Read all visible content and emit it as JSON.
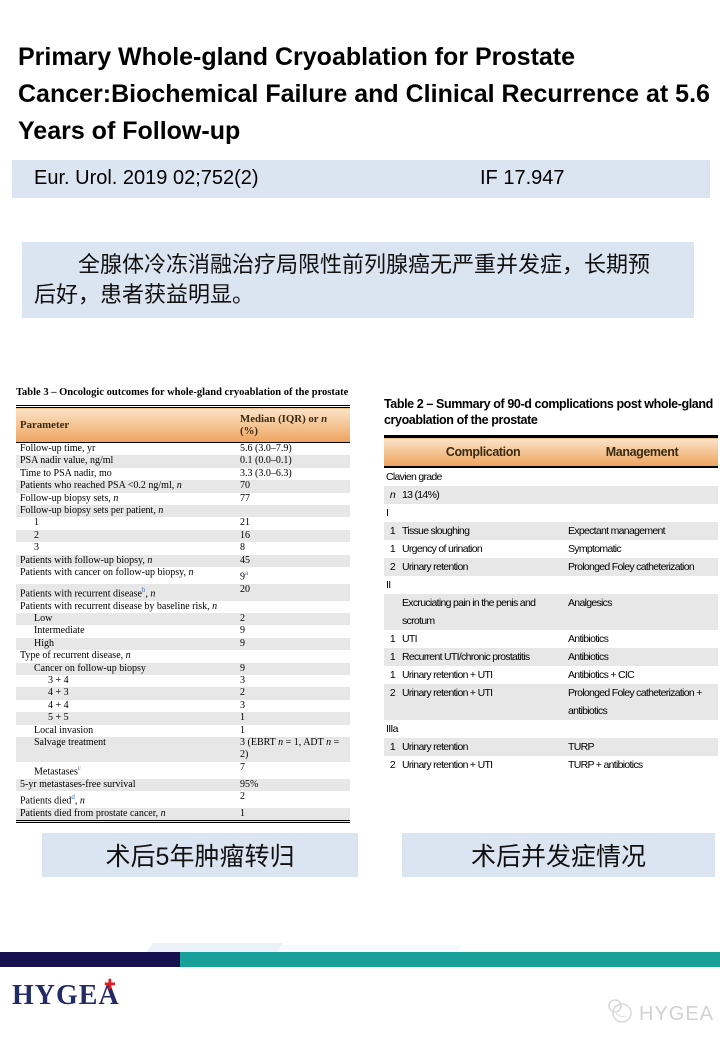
{
  "header": {
    "title": "Primary Whole-gland Cryoablation for Prostate Cancer:Biochemical Failure and Clinical Recurrence at 5.6 Years of Follow-up",
    "citation": "Eur. Urol. 2019 02;752(2)",
    "impact_factor": "IF 17.947"
  },
  "summary": {
    "text": "全腺体冷冻消融治疗局限性前列腺癌无严重并发症，长期预后好，患者获益明显。"
  },
  "table3": {
    "title": "Table 3 – Oncologic outcomes for whole-gland cryoablation of the prostate",
    "columns": [
      "Parameter",
      "Median (IQR) or n (%)"
    ],
    "rows": [
      {
        "label": "Follow-up time, yr",
        "value": "5.6 (3.0–7.9)",
        "indent": 0
      },
      {
        "label": "PSA nadir value, ng/ml",
        "value": "0.1 (0.0–0.1)",
        "indent": 0
      },
      {
        "label": "Time to PSA nadir, mo",
        "value": "3.3 (3.0–6.3)",
        "indent": 0
      },
      {
        "label": "Patients who reached PSA <0.2 ng/ml, n",
        "value": "70",
        "indent": 0
      },
      {
        "label": "Follow-up biopsy sets, n",
        "value": "77",
        "indent": 0
      },
      {
        "label": "Follow-up biopsy sets per patient, n",
        "value": "",
        "indent": 0
      },
      {
        "label": "1",
        "value": "21",
        "indent": 1
      },
      {
        "label": "2",
        "value": "16",
        "indent": 1
      },
      {
        "label": "3",
        "value": "8",
        "indent": 1
      },
      {
        "label": "Patients with follow-up biopsy, n",
        "value": "45",
        "indent": 0
      },
      {
        "label": "Patients with cancer on follow-up biopsy, n",
        "value": "9^a",
        "indent": 0
      },
      {
        "label": "Patients with recurrent disease^b, n",
        "value": "20",
        "indent": 0
      },
      {
        "label": "Patients with recurrent disease by baseline risk, n",
        "value": "",
        "indent": 0
      },
      {
        "label": "Low",
        "value": "2",
        "indent": 1
      },
      {
        "label": "Intermediate",
        "value": "9",
        "indent": 1
      },
      {
        "label": "High",
        "value": "9",
        "indent": 1
      },
      {
        "label": "Type of recurrent disease, n",
        "value": "",
        "indent": 0
      },
      {
        "label": "Cancer on follow-up biopsy",
        "value": "9",
        "indent": 1
      },
      {
        "label": "3 + 4",
        "value": "3",
        "indent": 2
      },
      {
        "label": "4 + 3",
        "value": "2",
        "indent": 2
      },
      {
        "label": "4 + 4",
        "value": "3",
        "indent": 2
      },
      {
        "label": "5 + 5",
        "value": "1",
        "indent": 2
      },
      {
        "label": "Local invasion",
        "value": "1",
        "indent": 1
      },
      {
        "label": "Salvage treatment",
        "value": "3 (EBRT n = 1, ADT n = 2)",
        "indent": 1
      },
      {
        "label": "Metastases^c",
        "value": "7",
        "indent": 1
      },
      {
        "label": "5-yr metastases-free survival",
        "value": "95%",
        "indent": 0
      },
      {
        "label": "Patients died^d, n",
        "value": "2",
        "indent": 0
      },
      {
        "label": "Patients died from prostate cancer, n",
        "value": "1",
        "indent": 0
      }
    ]
  },
  "table2": {
    "title": "Table 2 – Summary of 90-d complications post whole-gland cryoablation of the prostate",
    "columns": [
      "Complication",
      "Management"
    ],
    "rows": [
      {
        "group": "Clavien grade"
      },
      {
        "count": "n",
        "complication": "13 (14%)",
        "management": ""
      },
      {
        "group": "I"
      },
      {
        "count": "1",
        "complication": "Tissue sloughing",
        "management": "Expectant management"
      },
      {
        "count": "1",
        "complication": "Urgency of urination",
        "management": "Symptomatic"
      },
      {
        "count": "2",
        "complication": "Urinary retention",
        "management": "Prolonged Foley catheterization"
      },
      {
        "group": "II"
      },
      {
        "count": "",
        "complication": "Excruciating pain in the penis and scrotum",
        "management": "Analgesics"
      },
      {
        "count": "1",
        "complication": "UTI",
        "management": "Antibiotics"
      },
      {
        "count": "1",
        "complication": "Recurrent UTI/chronic prostatitis",
        "management": "Antibiotics"
      },
      {
        "count": "1",
        "complication": "Urinary retention + UTI",
        "management": "Antibiotics + CIC"
      },
      {
        "count": "2",
        "complication": "Urinary retention + UTI",
        "management": "Prolonged Foley catheterization + antibiotics"
      },
      {
        "group": "IIIa"
      },
      {
        "count": "1",
        "complication": "Urinary retention",
        "management": "TURP"
      },
      {
        "count": "2",
        "complication": "Urinary retention + UTI",
        "management": "TURP + antibiotics"
      }
    ]
  },
  "captions": {
    "left": "术后5年肿瘤转归",
    "right": "术后并发症情况"
  },
  "footer": {
    "logo_text": "HYGEA",
    "cross_icon": "✚",
    "watermark_text": "HYGEA"
  },
  "colors": {
    "light_blue_panel": "#dbe5f1",
    "table_header_top": "#fbe4c9",
    "table_header_bottom": "#eda35c",
    "row_shade": "#e7e7e7",
    "superscript_blue": "#3f6fbe",
    "footer_navy": "#171150",
    "footer_teal": "#18a099",
    "logo_navy": "#232a68",
    "cross_red": "#e11c22",
    "watermark_gray": "#d2d2d2"
  }
}
